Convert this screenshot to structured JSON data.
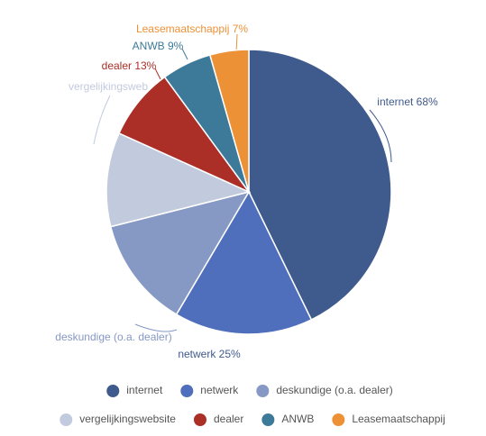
{
  "chart_data": {
    "type": "pie",
    "categories": [
      "internet",
      "netwerk",
      "deskundige (o.a. dealer)",
      "vergelijkingswebsite",
      "dealer",
      "ANWB",
      "Leasemaatschappij"
    ],
    "values": [
      68,
      25,
      20,
      17,
      13,
      9,
      7
    ],
    "value_labels": [
      "internet 68%",
      "netwerk 25%",
      "deskundige (o.a. dealer)",
      "vergelijkingsweb",
      "dealer 13%",
      "ANWB 9%",
      "Leasemaatschappij 7%"
    ],
    "colors": [
      "#3f5a8c",
      "#4f6fbd",
      "#8698c4",
      "#c2cade",
      "#ab2e27",
      "#3d7a99",
      "#ec9136"
    ],
    "legend": "bottom"
  }
}
